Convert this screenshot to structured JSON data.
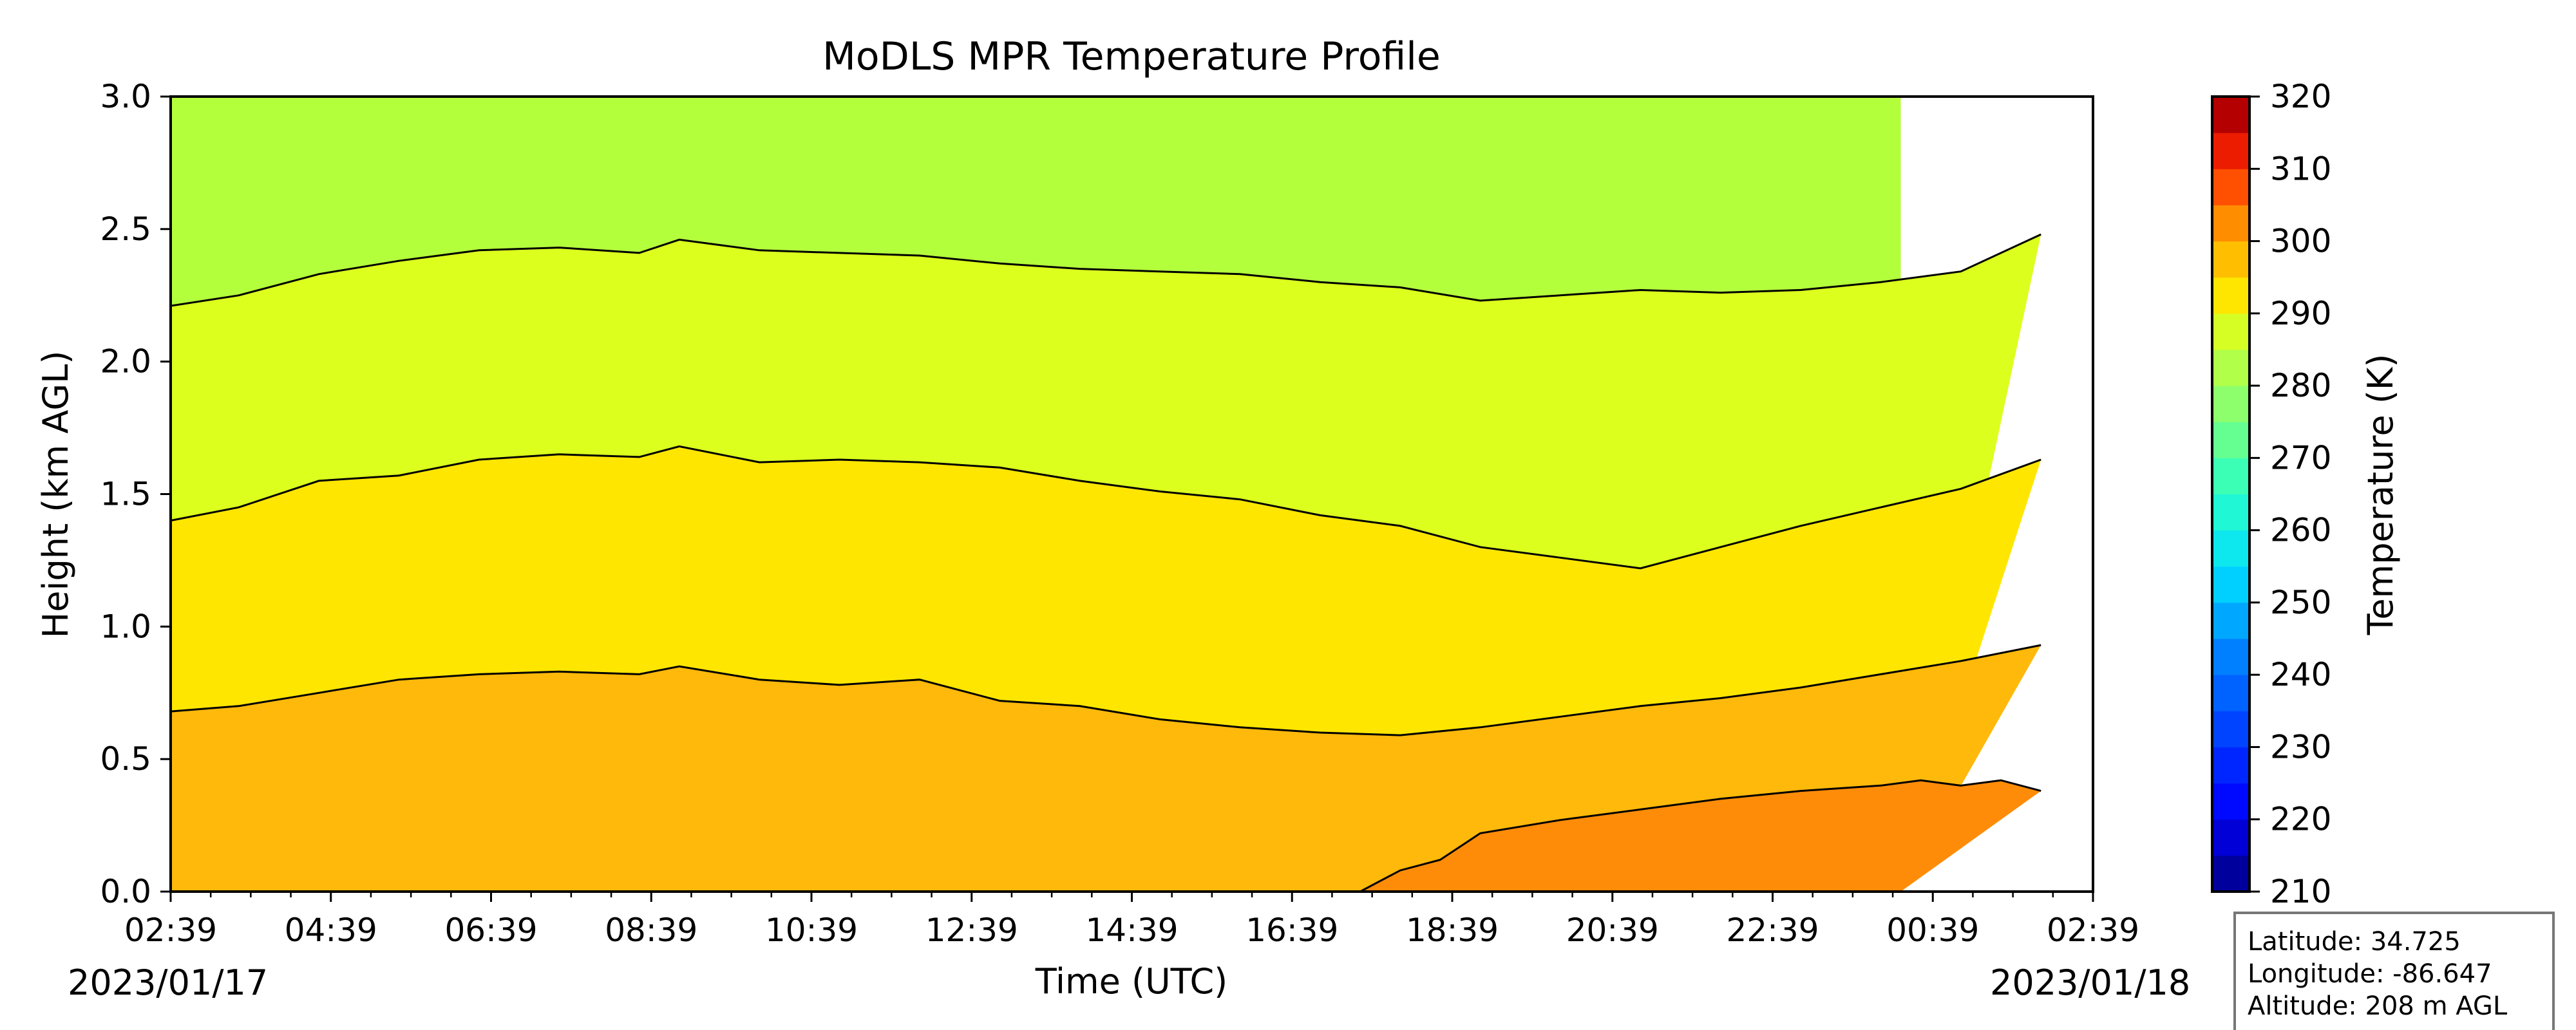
{
  "chart_data": {
    "type": "contour",
    "title": "MoDLS MPR Temperature Profile",
    "xlabel": "Time (UTC)",
    "ylabel": "Height (km AGL)",
    "x_tick_labels": [
      "02:39",
      "04:39",
      "06:39",
      "08:39",
      "10:39",
      "12:39",
      "14:39",
      "16:39",
      "18:39",
      "20:39",
      "22:39",
      "00:39",
      "02:39"
    ],
    "x_hours": [
      0,
      24
    ],
    "data_end_hour": 21.6,
    "start_date": "2023/01/17",
    "end_date": "2023/01/18",
    "ylim": [
      0,
      3.0
    ],
    "y_ticks": [
      0.0,
      0.5,
      1.0,
      1.5,
      2.0,
      2.5,
      3.0
    ],
    "y_tick_labels": [
      "0.0",
      "0.5",
      "1.0",
      "1.5",
      "2.0",
      "2.5",
      "3.0"
    ],
    "colorbar": {
      "label": "Temperature (K)",
      "min": 210,
      "max": 320,
      "step": 5,
      "tick_labels": [
        "210",
        "220",
        "230",
        "240",
        "250",
        "260",
        "270",
        "280",
        "290",
        "300",
        "310",
        "320"
      ]
    },
    "contour_levels_k": [
      275,
      280,
      285,
      290
    ],
    "contour_band_colors": {
      "above_275": "#b4ff3c",
      "275_to_280": "#dcff1e",
      "280_to_285": "#ffe600",
      "285_to_290": "#ffb90a",
      "below_285": "#ff8c08"
    },
    "contour_lines": [
      {
        "level_k": 290,
        "points": [
          [
            17.5,
            0.0
          ],
          [
            18.0,
            0.08
          ],
          [
            18.5,
            0.12
          ],
          [
            19.0,
            0.22
          ],
          [
            20.0,
            0.27
          ],
          [
            21.0,
            0.31
          ],
          [
            22.0,
            0.35
          ],
          [
            23.0,
            0.38
          ],
          [
            24.0,
            0.4
          ],
          [
            24.5,
            0.42
          ],
          [
            25.0,
            0.4
          ],
          [
            25.5,
            0.42
          ],
          [
            26.0,
            0.38
          ]
        ]
      },
      {
        "level_k": 285,
        "points": [
          [
            2.65,
            0.68
          ],
          [
            3.5,
            0.7
          ],
          [
            4.5,
            0.75
          ],
          [
            5.5,
            0.8
          ],
          [
            6.5,
            0.82
          ],
          [
            7.5,
            0.83
          ],
          [
            8.5,
            0.82
          ],
          [
            9.0,
            0.85
          ],
          [
            10.0,
            0.8
          ],
          [
            11.0,
            0.78
          ],
          [
            12.0,
            0.8
          ],
          [
            13.0,
            0.72
          ],
          [
            14.0,
            0.7
          ],
          [
            15.0,
            0.65
          ],
          [
            16.0,
            0.62
          ],
          [
            17.0,
            0.6
          ],
          [
            18.0,
            0.59
          ],
          [
            19.0,
            0.62
          ],
          [
            20.0,
            0.66
          ],
          [
            21.0,
            0.7
          ],
          [
            22.0,
            0.73
          ],
          [
            23.0,
            0.77
          ],
          [
            24.0,
            0.82
          ],
          [
            25.0,
            0.87
          ],
          [
            26.0,
            0.93
          ]
        ]
      },
      {
        "level_k": 280,
        "points": [
          [
            2.65,
            1.4
          ],
          [
            3.5,
            1.45
          ],
          [
            4.5,
            1.55
          ],
          [
            5.5,
            1.57
          ],
          [
            6.5,
            1.63
          ],
          [
            7.5,
            1.65
          ],
          [
            8.5,
            1.64
          ],
          [
            9.0,
            1.68
          ],
          [
            10.0,
            1.62
          ],
          [
            11.0,
            1.63
          ],
          [
            12.0,
            1.62
          ],
          [
            13.0,
            1.6
          ],
          [
            14.0,
            1.55
          ],
          [
            15.0,
            1.51
          ],
          [
            16.0,
            1.48
          ],
          [
            17.0,
            1.42
          ],
          [
            18.0,
            1.38
          ],
          [
            19.0,
            1.3
          ],
          [
            20.0,
            1.26
          ],
          [
            21.0,
            1.22
          ],
          [
            22.0,
            1.3
          ],
          [
            23.0,
            1.38
          ],
          [
            24.0,
            1.45
          ],
          [
            25.0,
            1.52
          ],
          [
            26.0,
            1.63
          ]
        ]
      },
      {
        "level_k": 275,
        "points": [
          [
            2.65,
            2.21
          ],
          [
            3.5,
            2.25
          ],
          [
            4.5,
            2.33
          ],
          [
            5.5,
            2.38
          ],
          [
            6.5,
            2.42
          ],
          [
            7.5,
            2.43
          ],
          [
            8.5,
            2.41
          ],
          [
            9.0,
            2.46
          ],
          [
            10.0,
            2.42
          ],
          [
            11.0,
            2.41
          ],
          [
            12.0,
            2.4
          ],
          [
            13.0,
            2.37
          ],
          [
            14.0,
            2.35
          ],
          [
            15.0,
            2.34
          ],
          [
            16.0,
            2.33
          ],
          [
            17.0,
            2.3
          ],
          [
            18.0,
            2.28
          ],
          [
            19.0,
            2.23
          ],
          [
            20.0,
            2.25
          ],
          [
            21.0,
            2.27
          ],
          [
            22.0,
            2.26
          ],
          [
            23.0,
            2.27
          ],
          [
            24.0,
            2.3
          ],
          [
            25.0,
            2.34
          ],
          [
            26.0,
            2.48
          ]
        ]
      }
    ],
    "info_box": [
      "Latitude: 34.725",
      "Longitude: -86.647",
      "Altitude: 208 m AGL"
    ]
  }
}
